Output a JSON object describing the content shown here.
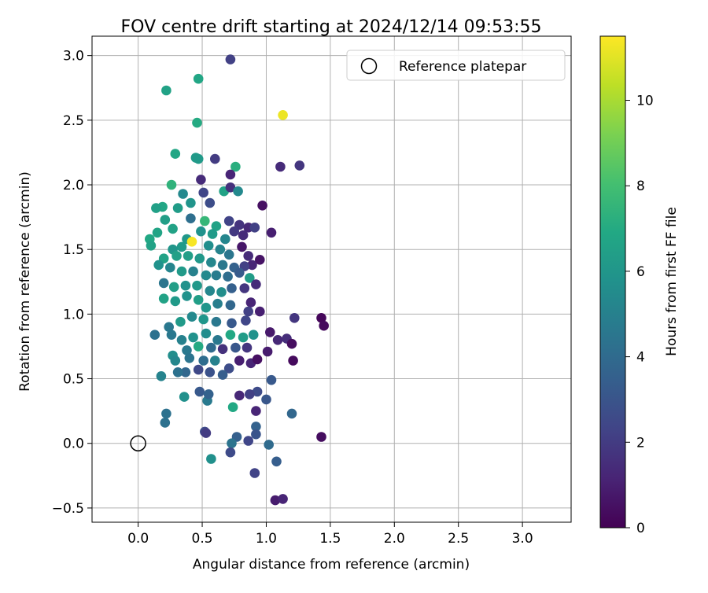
{
  "chart_data": {
    "type": "scatter",
    "title": "FOV centre drift starting at 2024/12/14 09:53:55",
    "xlabel": "Angular distance from reference (arcmin)",
    "ylabel": "Rotation from reference (arcmin)",
    "xlim": [
      -0.36,
      3.38
    ],
    "ylim": [
      -0.61,
      3.15
    ],
    "xticks": [
      "0.0",
      "0.5",
      "1.0",
      "1.5",
      "2.0",
      "2.5",
      "3.0"
    ],
    "yticks": [
      "−0.5",
      "0.0",
      "0.5",
      "1.0",
      "1.5",
      "2.0",
      "2.5",
      "3.0"
    ],
    "grid": true,
    "legend": {
      "placement": "top-right",
      "entries": [
        "Reference platepar"
      ]
    },
    "colorbar": {
      "label": "Hours from first FF file",
      "colormap": "viridis",
      "range": [
        0,
        11.5
      ],
      "ticks": [
        "0",
        "2",
        "4",
        "6",
        "8",
        "10"
      ]
    },
    "reference_point": {
      "x": 0.0,
      "y": 0.0,
      "label": "Reference platepar"
    },
    "series": [
      {
        "points": [
          [
            0.72,
            2.97,
            2.2
          ],
          [
            0.29,
            2.24,
            6.8
          ],
          [
            0.45,
            2.21,
            6.2
          ],
          [
            0.22,
            2.73,
            6.6
          ],
          [
            0.47,
            2.82,
            6.8
          ],
          [
            0.46,
            2.48,
            7.0
          ],
          [
            1.13,
            2.54,
            11.2
          ],
          [
            1.11,
            2.14,
            1.4
          ],
          [
            1.26,
            2.15,
            1.8
          ],
          [
            0.6,
            2.2,
            2.0
          ],
          [
            0.76,
            2.14,
            7.2
          ],
          [
            0.49,
            2.04,
            1.4
          ],
          [
            0.72,
            2.08,
            1.2
          ],
          [
            0.47,
            2.2,
            6.2
          ],
          [
            0.35,
            1.93,
            5.4
          ],
          [
            0.51,
            1.94,
            2.4
          ],
          [
            0.67,
            1.95,
            6.6
          ],
          [
            0.72,
            1.98,
            1.6
          ],
          [
            0.78,
            1.95,
            5.4
          ],
          [
            0.97,
            1.84,
            0.5
          ],
          [
            1.04,
            1.63,
            1.0
          ],
          [
            0.26,
            2.0,
            7.4
          ],
          [
            0.19,
            1.83,
            6.8
          ],
          [
            0.14,
            1.82,
            6.5
          ],
          [
            0.31,
            1.82,
            6.3
          ],
          [
            0.41,
            1.86,
            5.9
          ],
          [
            0.56,
            1.86,
            2.7
          ],
          [
            0.41,
            1.74,
            4.2
          ],
          [
            0.52,
            1.72,
            7.6
          ],
          [
            0.61,
            1.68,
            6.6
          ],
          [
            0.71,
            1.72,
            2.3
          ],
          [
            0.79,
            1.69,
            1.7
          ],
          [
            0.86,
            1.67,
            1.3
          ],
          [
            0.91,
            1.67,
            2.2
          ],
          [
            0.82,
            1.61,
            1.4
          ],
          [
            0.75,
            1.64,
            1.9
          ],
          [
            0.68,
            1.58,
            5.2
          ],
          [
            0.58,
            1.62,
            6.2
          ],
          [
            0.49,
            1.64,
            5.8
          ],
          [
            0.38,
            1.58,
            6.1
          ],
          [
            0.27,
            1.66,
            6.6
          ],
          [
            0.21,
            1.73,
            6.4
          ],
          [
            0.15,
            1.63,
            6.7
          ],
          [
            0.09,
            1.58,
            6.9
          ],
          [
            0.1,
            1.53,
            6.6
          ],
          [
            0.42,
            1.56,
            11.4
          ],
          [
            0.34,
            1.52,
            6.2
          ],
          [
            0.27,
            1.5,
            6.0
          ],
          [
            0.55,
            1.53,
            5.6
          ],
          [
            0.64,
            1.5,
            5.1
          ],
          [
            0.71,
            1.46,
            4.5
          ],
          [
            0.81,
            1.52,
            0.7
          ],
          [
            0.86,
            1.45,
            1.4
          ],
          [
            0.95,
            1.42,
            0.6
          ],
          [
            0.89,
            1.38,
            1.2
          ],
          [
            0.83,
            1.37,
            2.2
          ],
          [
            0.75,
            1.36,
            3.6
          ],
          [
            0.66,
            1.38,
            4.6
          ],
          [
            0.57,
            1.4,
            5.3
          ],
          [
            0.48,
            1.43,
            6.1
          ],
          [
            0.39,
            1.45,
            6.4
          ],
          [
            0.3,
            1.45,
            6.5
          ],
          [
            0.2,
            1.43,
            6.6
          ],
          [
            0.16,
            1.38,
            5.8
          ],
          [
            0.25,
            1.36,
            5.2
          ],
          [
            0.34,
            1.33,
            6.2
          ],
          [
            0.43,
            1.33,
            5.0
          ],
          [
            0.53,
            1.3,
            5.4
          ],
          [
            0.61,
            1.3,
            4.8
          ],
          [
            0.7,
            1.29,
            4.1
          ],
          [
            0.79,
            1.32,
            3.3
          ],
          [
            0.87,
            1.28,
            6.3
          ],
          [
            0.92,
            1.23,
            1.4
          ],
          [
            0.83,
            1.2,
            1.8
          ],
          [
            0.73,
            1.2,
            3.5
          ],
          [
            0.65,
            1.17,
            5.6
          ],
          [
            0.56,
            1.18,
            5.3
          ],
          [
            0.46,
            1.22,
            6.1
          ],
          [
            0.37,
            1.22,
            5.8
          ],
          [
            0.28,
            1.21,
            6.4
          ],
          [
            0.2,
            1.24,
            4.5
          ],
          [
            0.2,
            1.12,
            6.6
          ],
          [
            0.29,
            1.1,
            6.2
          ],
          [
            0.38,
            1.14,
            5.8
          ],
          [
            0.47,
            1.11,
            6.4
          ],
          [
            0.53,
            1.05,
            6.0
          ],
          [
            0.62,
            1.08,
            4.9
          ],
          [
            0.72,
            1.07,
            3.8
          ],
          [
            0.88,
            1.09,
            1.2
          ],
          [
            0.95,
            1.02,
            1.0
          ],
          [
            0.86,
            1.02,
            2.2
          ],
          [
            0.84,
            0.95,
            2.4
          ],
          [
            0.73,
            0.93,
            3.2
          ],
          [
            0.61,
            0.94,
            4.6
          ],
          [
            0.51,
            0.96,
            6.0
          ],
          [
            0.42,
            0.98,
            5.4
          ],
          [
            0.33,
            0.94,
            6.2
          ],
          [
            0.24,
            0.9,
            4.6
          ],
          [
            0.13,
            0.84,
            4.3
          ],
          [
            0.26,
            0.84,
            4.6
          ],
          [
            0.34,
            0.8,
            5.0
          ],
          [
            0.43,
            0.82,
            5.8
          ],
          [
            0.53,
            0.85,
            5.5
          ],
          [
            0.62,
            0.8,
            4.6
          ],
          [
            0.72,
            0.84,
            6.9
          ],
          [
            0.82,
            0.82,
            6.3
          ],
          [
            0.9,
            0.84,
            5.8
          ],
          [
            1.03,
            0.86,
            0.8
          ],
          [
            1.09,
            0.8,
            1.3
          ],
          [
            1.16,
            0.81,
            1.5
          ],
          [
            1.2,
            0.77,
            0.4
          ],
          [
            1.22,
            0.97,
            1.8
          ],
          [
            1.43,
            0.97,
            0.2
          ],
          [
            1.45,
            0.91,
            0.3
          ],
          [
            0.85,
            0.74,
            1.8
          ],
          [
            0.76,
            0.74,
            3.1
          ],
          [
            0.66,
            0.73,
            1.6
          ],
          [
            0.57,
            0.74,
            4.0
          ],
          [
            0.47,
            0.75,
            7.0
          ],
          [
            0.38,
            0.72,
            4.6
          ],
          [
            0.27,
            0.68,
            5.6
          ],
          [
            0.29,
            0.64,
            5.3
          ],
          [
            0.4,
            0.66,
            4.4
          ],
          [
            0.51,
            0.64,
            4.1
          ],
          [
            0.6,
            0.64,
            5.0
          ],
          [
            0.71,
            0.58,
            2.7
          ],
          [
            0.79,
            0.64,
            1.0
          ],
          [
            0.88,
            0.62,
            1.2
          ],
          [
            0.93,
            0.65,
            0.5
          ],
          [
            1.01,
            0.71,
            0.9
          ],
          [
            1.21,
            0.64,
            0.3
          ],
          [
            1.04,
            0.49,
            3.2
          ],
          [
            0.93,
            0.4,
            2.6
          ],
          [
            0.87,
            0.38,
            2.2
          ],
          [
            0.79,
            0.37,
            1.3
          ],
          [
            0.66,
            0.53,
            3.4
          ],
          [
            0.56,
            0.55,
            2.9
          ],
          [
            0.47,
            0.57,
            2.5
          ],
          [
            0.37,
            0.55,
            3.8
          ],
          [
            0.31,
            0.55,
            4.3
          ],
          [
            0.18,
            0.52,
            5.1
          ],
          [
            0.36,
            0.36,
            5.7
          ],
          [
            0.48,
            0.4,
            3.2
          ],
          [
            0.54,
            0.33,
            4.7
          ],
          [
            0.55,
            0.38,
            3.6
          ],
          [
            0.74,
            0.28,
            6.9
          ],
          [
            0.92,
            0.25,
            1.2
          ],
          [
            1.0,
            0.34,
            3.1
          ],
          [
            1.2,
            0.23,
            3.8
          ],
          [
            0.22,
            0.23,
            4.3
          ],
          [
            0.21,
            0.16,
            4.3
          ],
          [
            0.52,
            0.09,
            2.6
          ],
          [
            0.53,
            0.08,
            2.0
          ],
          [
            0.92,
            0.13,
            3.6
          ],
          [
            0.92,
            0.07,
            3.0
          ],
          [
            0.77,
            0.05,
            3.5
          ],
          [
            0.86,
            0.02,
            2.4
          ],
          [
            1.02,
            -0.01,
            4.0
          ],
          [
            1.43,
            0.05,
            0.4
          ],
          [
            0.73,
            0.0,
            4.4
          ],
          [
            0.57,
            -0.12,
            5.7
          ],
          [
            0.72,
            -0.07,
            2.6
          ],
          [
            0.91,
            -0.23,
            2.3
          ],
          [
            1.08,
            -0.14,
            3.4
          ],
          [
            1.07,
            -0.44,
            0.9
          ],
          [
            1.13,
            -0.43,
            1.2
          ]
        ]
      }
    ]
  }
}
